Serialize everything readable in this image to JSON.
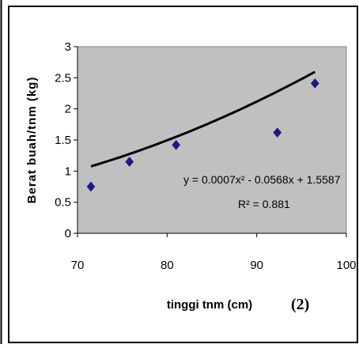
{
  "chart_data": {
    "type": "scatter",
    "xlabel": "tinggi tnm (cm)",
    "ylabel": "Berat buah/tnm (kg)",
    "panel_label": "(2)",
    "xlim": [
      70,
      100
    ],
    "ylim": [
      0,
      3
    ],
    "x_ticks": [
      "70",
      "80",
      "90",
      "100"
    ],
    "y_ticks": [
      "0",
      "0.5",
      "1",
      "1.5",
      "2",
      "2.5",
      "3"
    ],
    "x_tick_values": [
      70,
      80,
      90,
      100
    ],
    "y_tick_values": [
      0,
      0.5,
      1,
      1.5,
      2,
      2.5,
      3
    ],
    "points": [
      {
        "x": 71.5,
        "y": 0.75
      },
      {
        "x": 75.8,
        "y": 1.15
      },
      {
        "x": 81.0,
        "y": 1.42
      },
      {
        "x": 92.3,
        "y": 1.62
      },
      {
        "x": 96.5,
        "y": 2.41
      }
    ],
    "trendline": {
      "type": "polynomial",
      "equation_text": "y = 0.0007x² - 0.0568x + 1.5587",
      "r2_text": "R² = 0.881",
      "x_range": [
        71.5,
        96.5
      ]
    },
    "grid": false,
    "legend": "none",
    "colors": {
      "plot_area": "#c0c0c0",
      "marker": "#1a1a8c",
      "trendline": "#000000"
    }
  }
}
